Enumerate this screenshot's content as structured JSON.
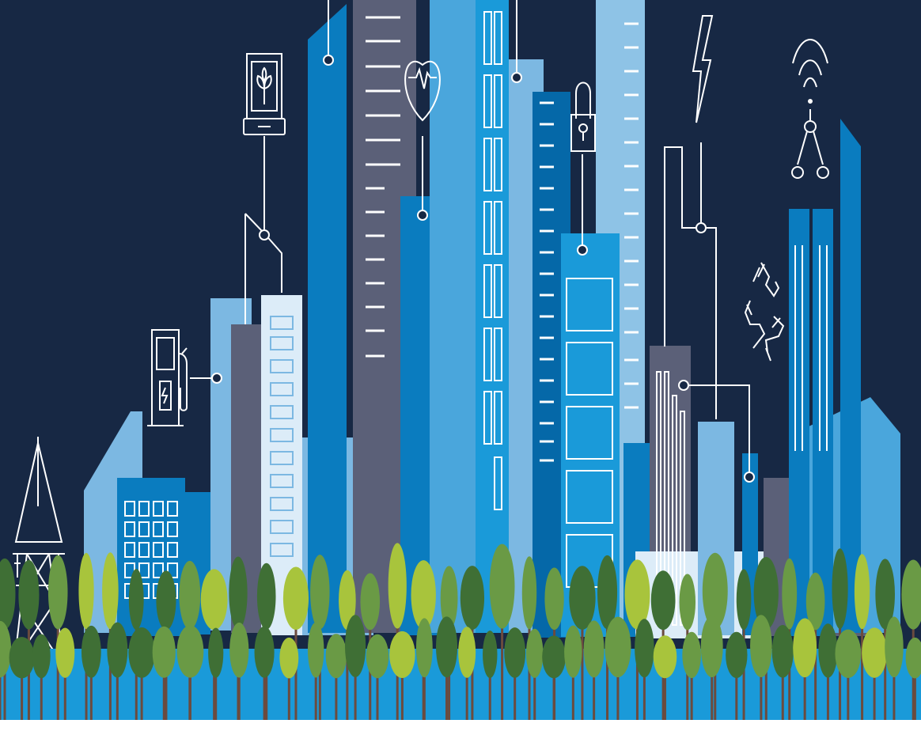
{
  "scene": {
    "background": "#172844",
    "ground_strip": "#ffffff",
    "palette": {
      "navy_sky": "#172844",
      "light_blue": "#7cb8e2",
      "pale_blue": "#dcecf8",
      "bright_blue": "#1a9ad9",
      "mid_blue": "#0a7cbf",
      "deep_blue": "#0568a8",
      "slate_gray": "#5b6078",
      "icon_line": "#ffffff",
      "tree_dark": "#3f6f35",
      "tree_mid": "#6a9a45",
      "tree_light": "#a8c43c",
      "trunk": "#6b4b3e"
    },
    "icons": [
      "tablet-plant-icon",
      "fuel-pump-icon",
      "heart-pulse-icon",
      "padlock-icon",
      "lightning-bolt-icon",
      "wifi-network-icon",
      "recycle-icon",
      "power-pylon-icon"
    ]
  }
}
